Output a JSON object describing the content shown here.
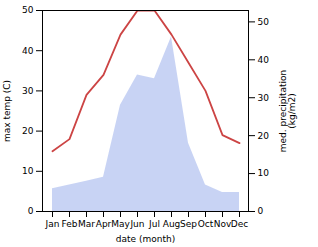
{
  "chart_data": {
    "type": "line",
    "categories": [
      "Jan",
      "Feb",
      "Mar",
      "Apr",
      "May",
      "Jun",
      "Jul",
      "Aug",
      "Sep",
      "Oct",
      "Nov",
      "Dec"
    ],
    "xlabel": "date (month)",
    "ylabel": "max temp (C)",
    "y2label": "med. precipitation\n(kg/m2)",
    "ylim": [
      0,
      50
    ],
    "yticks": [
      0,
      10,
      20,
      30,
      40,
      50
    ],
    "y2lim": [
      0,
      53
    ],
    "y2ticks": [
      0,
      10,
      20,
      30,
      40,
      50
    ],
    "series": [
      {
        "type": "area",
        "axis": "y2",
        "color": "#aabbee",
        "values": [
          6,
          7,
          8,
          9,
          28,
          36,
          35,
          46,
          18,
          7,
          5,
          5
        ]
      },
      {
        "type": "line",
        "color": "#cc4444",
        "values": [
          15,
          18,
          29,
          34,
          44,
          50,
          50,
          44,
          37,
          30,
          19,
          17
        ]
      }
    ]
  }
}
